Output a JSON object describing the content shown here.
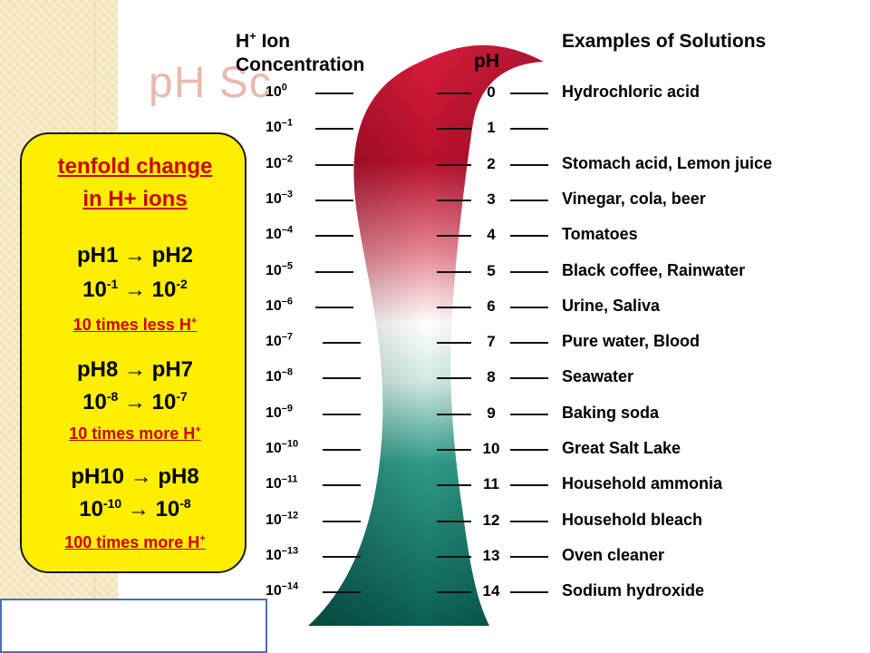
{
  "slide_title": "pH Sc",
  "headers": {
    "concentration_line1": "H",
    "concentration_plus": "+",
    "concentration_line1b": " Ion",
    "concentration_line2": "Concentration",
    "ph": "pH",
    "examples": "Examples of Solutions"
  },
  "concentrations": [
    {
      "base": "10",
      "exp": "0"
    },
    {
      "base": "10",
      "exp": "–1"
    },
    {
      "base": "10",
      "exp": "–2"
    },
    {
      "base": "10",
      "exp": "–3"
    },
    {
      "base": "10",
      "exp": "–4"
    },
    {
      "base": "10",
      "exp": "–5"
    },
    {
      "base": "10",
      "exp": "–6"
    },
    {
      "base": "10",
      "exp": "–7"
    },
    {
      "base": "10",
      "exp": "–8"
    },
    {
      "base": "10",
      "exp": "–9"
    },
    {
      "base": "10",
      "exp": "–10"
    },
    {
      "base": "10",
      "exp": "–11"
    },
    {
      "base": "10",
      "exp": "–12"
    },
    {
      "base": "10",
      "exp": "–13"
    },
    {
      "base": "10",
      "exp": "–14"
    }
  ],
  "ph_values": [
    "0",
    "1",
    "2",
    "3",
    "4",
    "5",
    "6",
    "7",
    "8",
    "9",
    "10",
    "11",
    "12",
    "13",
    "14"
  ],
  "examples": [
    "Hydrochloric acid",
    "",
    "Stomach acid, Lemon juice",
    "Vinegar, cola, beer",
    "Tomatoes",
    "Black coffee, Rainwater",
    "Urine, Saliva",
    "Pure water, Blood",
    "Seawater",
    "Baking soda",
    "Great Salt Lake",
    "Household ammonia",
    "Household bleach",
    "Oven cleaner",
    "Sodium hydroxide"
  ],
  "yellow_box": {
    "heading_line1": "tenfold change",
    "heading_line2": "in H+ ions",
    "ex1": {
      "from": "pH1",
      "to": "pH2",
      "c_from_base": "10",
      "c_from_exp": "-1",
      "c_to_base": "10",
      "c_to_exp": "-2",
      "note": "10 times less H",
      "note_sup": "+"
    },
    "ex2": {
      "from": "pH8",
      "to": "pH7",
      "c_from_base": "10",
      "c_from_exp": "-8",
      "c_to_base": "10",
      "c_to_exp": "-7",
      "note": "10 times more H",
      "note_sup": "+"
    },
    "ex3": {
      "from": "pH10",
      "to": "pH8",
      "c_from_base": "10",
      "c_from_exp": "-10",
      "c_to_base": "10",
      "c_to_exp": "-8",
      "note": "100 times more H",
      "note_sup": "+"
    },
    "arrow": "→"
  },
  "colors": {
    "acid": "#c8102e",
    "neutral": "#ffffff",
    "base": "#0e6b5f",
    "box_fill": "#ffee00",
    "accent_red": "#cc0000"
  }
}
